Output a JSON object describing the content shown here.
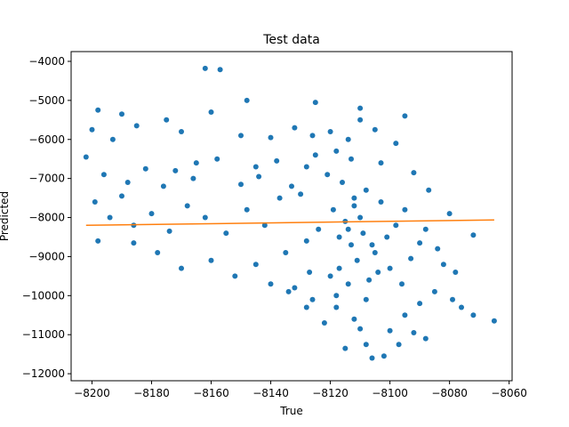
{
  "chart_data": {
    "type": "scatter",
    "title": "Test data",
    "xlabel": "True",
    "ylabel": "Predicted",
    "xlim": [
      -8207,
      -8059
    ],
    "ylim": [
      -12180,
      -3750
    ],
    "xticks": [
      -8200,
      -8180,
      -8160,
      -8140,
      -8120,
      -8100,
      -8080,
      -8060
    ],
    "yticks": [
      -12000,
      -11000,
      -10000,
      -9000,
      -8000,
      -7000,
      -6000,
      -5000,
      -4000
    ],
    "grid": false,
    "legend": "none",
    "colors": {
      "points": "#1f77b4",
      "fit_line": "#ff7f0e"
    },
    "series": [
      {
        "type": "scatter",
        "points": [
          [
            -8162,
            -4180
          ],
          [
            -8157,
            -4210
          ],
          [
            -8148,
            -5000
          ],
          [
            -8125,
            -5050
          ],
          [
            -8198,
            -5250
          ],
          [
            -8190,
            -5350
          ],
          [
            -8175,
            -5500
          ],
          [
            -8160,
            -5300
          ],
          [
            -8110,
            -5200
          ],
          [
            -8095,
            -5400
          ],
          [
            -8200,
            -5750
          ],
          [
            -8193,
            -6000
          ],
          [
            -8185,
            -5650
          ],
          [
            -8170,
            -5800
          ],
          [
            -8150,
            -5900
          ],
          [
            -8140,
            -5950
          ],
          [
            -8132,
            -5700
          ],
          [
            -8120,
            -5800
          ],
          [
            -8105,
            -5750
          ],
          [
            -8098,
            -6100
          ],
          [
            -8202,
            -6450
          ],
          [
            -8196,
            -6900
          ],
          [
            -8188,
            -7100
          ],
          [
            -8182,
            -6750
          ],
          [
            -8176,
            -7200
          ],
          [
            -8165,
            -6600
          ],
          [
            -8158,
            -6500
          ],
          [
            -8145,
            -6700
          ],
          [
            -8138,
            -6550
          ],
          [
            -8125,
            -6400
          ],
          [
            -8113,
            -6500
          ],
          [
            -8103,
            -6600
          ],
          [
            -8092,
            -6850
          ],
          [
            -8087,
            -7300
          ],
          [
            -8080,
            -7900
          ],
          [
            -8072,
            -8450
          ],
          [
            -8199,
            -7600
          ],
          [
            -8194,
            -8000
          ],
          [
            -8190,
            -7450
          ],
          [
            -8186,
            -8200
          ],
          [
            -8180,
            -7900
          ],
          [
            -8174,
            -8350
          ],
          [
            -8168,
            -7700
          ],
          [
            -8162,
            -8000
          ],
          [
            -8155,
            -8400
          ],
          [
            -8148,
            -7800
          ],
          [
            -8142,
            -8200
          ],
          [
            -8137,
            -7500
          ],
          [
            -8198,
            -8600
          ],
          [
            -8186,
            -8650
          ],
          [
            -8178,
            -8900
          ],
          [
            -8170,
            -9300
          ],
          [
            -8160,
            -9100
          ],
          [
            -8152,
            -9500
          ],
          [
            -8145,
            -9200
          ],
          [
            -8140,
            -9700
          ],
          [
            -8132,
            -9800
          ],
          [
            -8126,
            -10100
          ],
          [
            -8118,
            -10300
          ],
          [
            -8112,
            -10600
          ],
          [
            -8110,
            -10850
          ],
          [
            -8108,
            -11250
          ],
          [
            -8106,
            -11600
          ],
          [
            -8100,
            -10900
          ],
          [
            -8095,
            -10500
          ],
          [
            -8090,
            -10200
          ],
          [
            -8085,
            -9900
          ],
          [
            -8079,
            -10100
          ],
          [
            -8076,
            -10300
          ],
          [
            -8072,
            -10500
          ],
          [
            -8065,
            -10650
          ],
          [
            -8088,
            -11100
          ],
          [
            -8115,
            -11350
          ],
          [
            -8102,
            -11550
          ],
          [
            -8097,
            -11250
          ],
          [
            -8092,
            -10950
          ],
          [
            -8122,
            -10700
          ],
          [
            -8128,
            -10300
          ],
          [
            -8134,
            -9900
          ],
          [
            -8117,
            -9300
          ],
          [
            -8113,
            -8700
          ],
          [
            -8109,
            -8400
          ],
          [
            -8115,
            -8100
          ],
          [
            -8119,
            -7800
          ],
          [
            -8112,
            -7500
          ],
          [
            -8108,
            -7300
          ],
          [
            -8116,
            -7100
          ],
          [
            -8121,
            -6900
          ],
          [
            -8111,
            -9100
          ],
          [
            -8107,
            -9600
          ],
          [
            -8105,
            -8900
          ],
          [
            -8101,
            -8500
          ],
          [
            -8098,
            -8200
          ],
          [
            -8095,
            -7800
          ],
          [
            -8103,
            -7600
          ],
          [
            -8124,
            -8300
          ],
          [
            -8128,
            -8600
          ],
          [
            -8130,
            -7400
          ],
          [
            -8135,
            -8900
          ],
          [
            -8127,
            -9400
          ],
          [
            -8100,
            -9300
          ],
          [
            -8096,
            -9700
          ],
          [
            -8093,
            -9050
          ],
          [
            -8090,
            -8650
          ],
          [
            -8088,
            -8300
          ],
          [
            -8084,
            -8800
          ],
          [
            -8082,
            -9200
          ],
          [
            -8078,
            -9400
          ],
          [
            -8166,
            -7000
          ],
          [
            -8172,
            -6800
          ],
          [
            -8150,
            -7150
          ],
          [
            -8144,
            -6950
          ],
          [
            -8133,
            -7200
          ],
          [
            -8128,
            -6700
          ],
          [
            -8118,
            -6300
          ],
          [
            -8114,
            -6000
          ],
          [
            -8110,
            -5500
          ],
          [
            -8126,
            -5900
          ],
          [
            -8118,
            -10000
          ],
          [
            -8114,
            -9700
          ],
          [
            -8120,
            -9500
          ],
          [
            -8108,
            -10100
          ],
          [
            -8104,
            -9400
          ],
          [
            -8110,
            -8000
          ],
          [
            -8114,
            -8300
          ],
          [
            -8112,
            -7700
          ],
          [
            -8117,
            -8500
          ],
          [
            -8106,
            -8700
          ]
        ]
      },
      {
        "type": "line",
        "x": [
          -8202,
          -8065
        ],
        "y": [
          -8200,
          -8060
        ]
      }
    ]
  }
}
